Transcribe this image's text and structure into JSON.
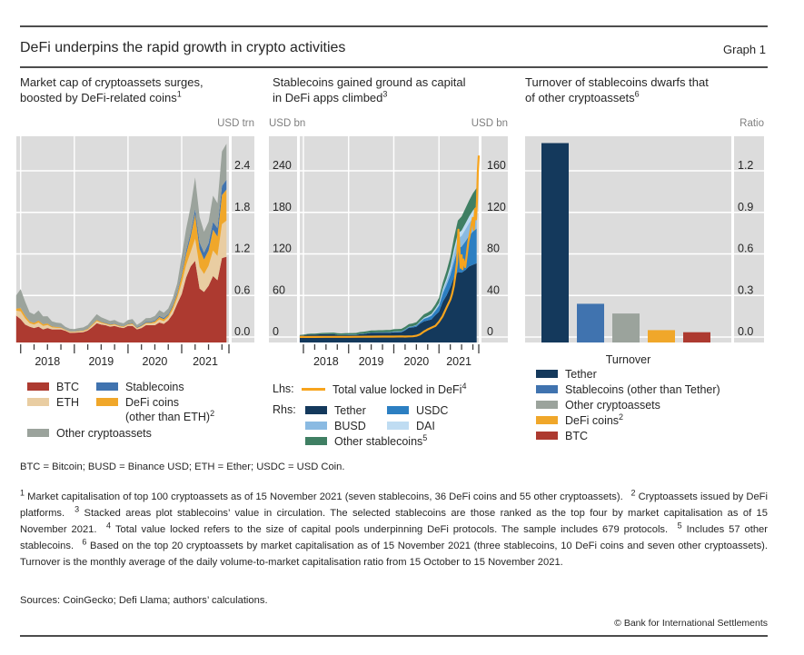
{
  "colors": {
    "plot_bg": "#dcdcdc",
    "grid": "#ffffff",
    "text": "#262626",
    "muted_unit": "#7f7f7f",
    "tick": "#404040",
    "rule": "#4d4d4d",
    "btc_red": "#ad3a30",
    "eth_tan": "#e9cda2",
    "defi_orange": "#f0a72a",
    "stablecoin_blue": "#4073af",
    "other_gray": "#9ba39c",
    "tether_navy": "#14395c",
    "usdc_blue": "#2c7fc2",
    "busd_lightblue": "#8abae2",
    "dai_paleblue": "#bfdcf2",
    "other_stable_green": "#3f7f63",
    "tvl_line_orange": "#f7a41d"
  },
  "header": {
    "title": "DeFi underpins the rapid growth in crypto activities",
    "graph_label": "Graph 1"
  },
  "panels": [
    {
      "title_line1": "Market cap of cryptoassets surges,",
      "title_line2": "boosted by DeFi-related coins",
      "title_sup": "1",
      "unit_right": "USD trn"
    },
    {
      "title_line1": "Stablecoins gained ground as capital",
      "title_line2": "in DeFi apps climbed",
      "title_sup": "3",
      "unit_left": "USD bn",
      "unit_right": "USD bn"
    },
    {
      "title_line1": "Turnover of stablecoins dwarfs that",
      "title_line2": "of other cryptoassets",
      "title_sup": "6",
      "unit_right": "Ratio"
    }
  ],
  "chart_data": [
    {
      "type": "area",
      "title": "Market cap of cryptoassets surges, boosted by DeFi-related coins",
      "stacked": true,
      "unit": "USD trn",
      "x_monthly": {
        "start": "2017-12",
        "end": "2021-11"
      },
      "xticklabels": [
        "2018",
        "2019",
        "2020",
        "2021"
      ],
      "yticks": [
        0.0,
        0.6,
        1.2,
        1.8,
        2.4
      ],
      "yticklabels": [
        "0.0",
        "0.6",
        "1.2",
        "1.8",
        "2.4"
      ],
      "ylim": [
        0,
        2.9
      ],
      "axis_side": "right",
      "grid": true,
      "series": [
        {
          "name": "BTC",
          "color": "#ad3a30",
          "values": [
            0.31,
            0.26,
            0.18,
            0.15,
            0.13,
            0.15,
            0.11,
            0.13,
            0.11,
            0.11,
            0.11,
            0.09,
            0.06,
            0.062,
            0.066,
            0.071,
            0.093,
            0.14,
            0.2,
            0.18,
            0.17,
            0.15,
            0.16,
            0.14,
            0.13,
            0.16,
            0.16,
            0.11,
            0.13,
            0.17,
            0.17,
            0.17,
            0.21,
            0.19,
            0.24,
            0.33,
            0.48,
            0.62,
            0.86,
            1.02,
            1.1,
            0.7,
            0.65,
            0.74,
            0.88,
            0.82,
            1.14,
            1.16
          ]
        },
        {
          "name": "ETH",
          "color": "#e9cda2",
          "values": [
            0.07,
            0.11,
            0.09,
            0.05,
            0.05,
            0.06,
            0.05,
            0.045,
            0.029,
            0.023,
            0.021,
            0.012,
            0.014,
            0.011,
            0.014,
            0.015,
            0.017,
            0.027,
            0.031,
            0.023,
            0.019,
            0.019,
            0.019,
            0.016,
            0.014,
            0.018,
            0.024,
            0.015,
            0.023,
            0.026,
            0.025,
            0.035,
            0.044,
            0.04,
            0.043,
            0.068,
            0.083,
            0.16,
            0.18,
            0.21,
            0.32,
            0.31,
            0.26,
            0.29,
            0.37,
            0.35,
            0.49,
            0.52
          ]
        },
        {
          "name": "DeFi coins (other than ETH)",
          "color": "#f0a72a",
          "values": [
            0.03,
            0.05,
            0.04,
            0.025,
            0.025,
            0.03,
            0.025,
            0.022,
            0.015,
            0.012,
            0.011,
            0.007,
            0.007,
            0.007,
            0.009,
            0.01,
            0.012,
            0.016,
            0.018,
            0.015,
            0.012,
            0.011,
            0.011,
            0.009,
            0.009,
            0.011,
            0.013,
            0.008,
            0.011,
            0.013,
            0.014,
            0.022,
            0.035,
            0.03,
            0.032,
            0.045,
            0.06,
            0.11,
            0.16,
            0.22,
            0.35,
            0.26,
            0.21,
            0.22,
            0.3,
            0.28,
            0.42,
            0.45
          ]
        },
        {
          "name": "Stablecoins",
          "color": "#4073af",
          "values": [
            0.002,
            0.002,
            0.002,
            0.002,
            0.003,
            0.003,
            0.003,
            0.003,
            0.003,
            0.003,
            0.003,
            0.003,
            0.003,
            0.003,
            0.003,
            0.003,
            0.004,
            0.004,
            0.005,
            0.005,
            0.005,
            0.005,
            0.005,
            0.005,
            0.005,
            0.006,
            0.006,
            0.008,
            0.009,
            0.01,
            0.011,
            0.012,
            0.014,
            0.016,
            0.017,
            0.019,
            0.022,
            0.035,
            0.045,
            0.055,
            0.075,
            0.095,
            0.1,
            0.105,
            0.11,
            0.12,
            0.13,
            0.14
          ]
        },
        {
          "name": "Other cryptoassets",
          "color": "#9ba39c",
          "values": [
            0.19,
            0.27,
            0.2,
            0.13,
            0.12,
            0.14,
            0.11,
            0.1,
            0.07,
            0.06,
            0.055,
            0.035,
            0.035,
            0.033,
            0.038,
            0.04,
            0.048,
            0.065,
            0.075,
            0.062,
            0.052,
            0.048,
            0.05,
            0.042,
            0.04,
            0.05,
            0.055,
            0.035,
            0.045,
            0.052,
            0.055,
            0.065,
            0.085,
            0.075,
            0.08,
            0.1,
            0.13,
            0.24,
            0.32,
            0.38,
            0.46,
            0.37,
            0.3,
            0.31,
            0.38,
            0.36,
            0.5,
            0.52
          ]
        }
      ]
    },
    {
      "type": "area+line",
      "title": "Stablecoins gained ground as capital in DeFi apps climbed",
      "stacked": true,
      "unit_left": "USD bn",
      "unit_right": "USD bn",
      "x_monthly": {
        "start": "2017-12",
        "end": "2021-11"
      },
      "xticklabels": [
        "2018",
        "2019",
        "2020",
        "2021"
      ],
      "yticks_left": [
        0,
        60,
        120,
        180,
        240
      ],
      "yticklabels_left": [
        "0",
        "60",
        "120",
        "180",
        "240"
      ],
      "yticks_right": [
        0,
        40,
        80,
        120,
        160
      ],
      "yticklabels_right": [
        "0",
        "40",
        "80",
        "120",
        "160"
      ],
      "ylim_left": [
        0,
        290
      ],
      "ylim_right": [
        0,
        193
      ],
      "grid": true,
      "series_axis": "right",
      "series": [
        {
          "name": "Tether",
          "color": "#14395c",
          "values": [
            1.4,
            1.6,
            2.2,
            2.3,
            2.3,
            2.5,
            2.7,
            2.7,
            2.8,
            2.8,
            2.0,
            1.8,
            1.9,
            2.0,
            2.0,
            2.0,
            2.8,
            3.0,
            3.5,
            4.0,
            4.0,
            4.1,
            4.1,
            4.2,
            4.1,
            4.6,
            4.6,
            4.6,
            6.4,
            8.8,
            9.2,
            10.0,
            13.0,
            15.0,
            15.9,
            17.0,
            21.0,
            24.4,
            34.0,
            40.0,
            48.0,
            58.0,
            62.5,
            62.0,
            64.5,
            68.0,
            69.5,
            71.0
          ]
        },
        {
          "name": "USDC",
          "color": "#2c7fc2",
          "values": [
            0,
            0,
            0,
            0,
            0,
            0,
            0,
            0,
            0,
            0,
            0.13,
            0.17,
            0.25,
            0.24,
            0.24,
            0.24,
            0.29,
            0.32,
            0.34,
            0.37,
            0.41,
            0.44,
            0.46,
            0.49,
            0.52,
            0.56,
            0.6,
            0.68,
            0.73,
            0.73,
            0.93,
            1.1,
            1.4,
            2.5,
            2.8,
            3.5,
            4.0,
            5.5,
            8.0,
            10.0,
            11.5,
            14.5,
            22.8,
            25.0,
            27.5,
            29.5,
            32.0,
            33.5
          ]
        },
        {
          "name": "BUSD",
          "color": "#8abae2",
          "values": [
            0,
            0,
            0,
            0,
            0,
            0,
            0,
            0,
            0,
            0,
            0,
            0,
            0,
            0,
            0,
            0,
            0,
            0,
            0,
            0,
            0.01,
            0.02,
            0.03,
            0.05,
            0.08,
            0.11,
            0.15,
            0.17,
            0.19,
            0.15,
            0.18,
            0.23,
            0.37,
            0.48,
            0.65,
            0.7,
            1.0,
            1.5,
            2.6,
            3.5,
            5.0,
            8.0,
            9.5,
            10.4,
            11.5,
            12.2,
            13.0,
            13.3
          ]
        },
        {
          "name": "DAI",
          "color": "#bfdcf2",
          "values": [
            0,
            0,
            0,
            0,
            0,
            0,
            0,
            0,
            0,
            0,
            0,
            0,
            0,
            0,
            0,
            0,
            0,
            0,
            0,
            0,
            0,
            0,
            0,
            0,
            0.01,
            0.04,
            0.08,
            0.06,
            0.08,
            0.11,
            0.13,
            0.19,
            0.41,
            0.68,
            0.88,
            1.0,
            1.1,
            1.3,
            1.8,
            2.5,
            3.5,
            4.5,
            4.8,
            5.2,
            5.8,
            6.3,
            7.2,
            8.2
          ]
        },
        {
          "name": "Other stablecoins",
          "color": "#3f7f63",
          "values": [
            0.6,
            0.7,
            0.8,
            0.9,
            1.0,
            1.1,
            1.2,
            1.3,
            1.4,
            1.5,
            1.6,
            1.5,
            1.5,
            1.6,
            1.6,
            1.7,
            1.7,
            1.8,
            1.8,
            1.9,
            1.9,
            2.0,
            2.0,
            2.0,
            2.1,
            2.2,
            2.3,
            2.4,
            2.5,
            2.6,
            2.7,
            2.8,
            3.0,
            3.2,
            3.4,
            3.7,
            4.0,
            5.0,
            6.0,
            7.5,
            9.0,
            11.0,
            12.5,
            13.5,
            14.5,
            15.5,
            16.5,
            17.5
          ]
        }
      ],
      "line": {
        "name": "Total value locked in DeFi",
        "axis": "left",
        "color": "#f7a41d",
        "points": [
          [
            2017.92,
            0.1
          ],
          [
            2018.25,
            0.15
          ],
          [
            2018.5,
            0.2
          ],
          [
            2018.75,
            0.25
          ],
          [
            2019.0,
            0.3
          ],
          [
            2019.25,
            0.4
          ],
          [
            2019.5,
            0.5
          ],
          [
            2019.75,
            0.6
          ],
          [
            2020.0,
            0.7
          ],
          [
            2020.17,
            0.9
          ],
          [
            2020.25,
            0.7
          ],
          [
            2020.33,
            0.9
          ],
          [
            2020.42,
            1.0
          ],
          [
            2020.5,
            1.9
          ],
          [
            2020.58,
            3.8
          ],
          [
            2020.67,
            8.0
          ],
          [
            2020.71,
            9.5
          ],
          [
            2020.75,
            11.0
          ],
          [
            2020.83,
            13.5
          ],
          [
            2020.92,
            16.0
          ],
          [
            2021.0,
            22.0
          ],
          [
            2021.08,
            30.0
          ],
          [
            2021.17,
            43.0
          ],
          [
            2021.25,
            54.0
          ],
          [
            2021.29,
            62.0
          ],
          [
            2021.33,
            74.0
          ],
          [
            2021.37,
            92.0
          ],
          [
            2021.4,
            108.0
          ],
          [
            2021.43,
            155.0
          ],
          [
            2021.46,
            118.0
          ],
          [
            2021.48,
            100.0
          ],
          [
            2021.5,
            118.0
          ],
          [
            2021.52,
            98.0
          ],
          [
            2021.54,
            112.0
          ],
          [
            2021.58,
            101.0
          ],
          [
            2021.62,
            122.0
          ],
          [
            2021.65,
            138.0
          ],
          [
            2021.69,
            150.0
          ],
          [
            2021.72,
            162.0
          ],
          [
            2021.75,
            172.0
          ],
          [
            2021.77,
            155.0
          ],
          [
            2021.8,
            185.0
          ],
          [
            2021.82,
            170.0
          ],
          [
            2021.84,
            196.0
          ],
          [
            2021.86,
            240.0
          ],
          [
            2021.88,
            262.0
          ]
        ]
      }
    },
    {
      "type": "bar",
      "title": "Turnover of stablecoins dwarfs that of other cryptoassets",
      "unit": "Ratio",
      "xlabel": "Turnover",
      "categories": [
        "Tether",
        "Stablecoins (other than Tether)",
        "Other cryptoassets",
        "DeFi coins",
        "BTC"
      ],
      "values": [
        1.4,
        0.24,
        0.17,
        0.05,
        0.035
      ],
      "bar_colors": [
        "#14395c",
        "#4073af",
        "#9ba39c",
        "#f0a72a",
        "#ad3a30"
      ],
      "yticks": [
        0.0,
        0.3,
        0.6,
        0.9,
        1.2
      ],
      "yticklabels": [
        "0.0",
        "0.3",
        "0.6",
        "0.9",
        "1.2"
      ],
      "ylim": [
        0,
        1.45
      ],
      "axis_side": "right",
      "grid": true
    }
  ],
  "legend1": {
    "col1": [
      {
        "label": "BTC",
        "color": "#ad3a30"
      },
      {
        "label": "ETH",
        "color": "#e9cda2"
      },
      {
        "label": "Other cryptoassets",
        "color": "#9ba39c"
      }
    ],
    "col2": [
      {
        "label": "Stablecoins",
        "color": "#4073af"
      },
      {
        "label": "DeFi coins",
        "label2": "(other than ETH)",
        "sup2": "2",
        "color": "#f0a72a"
      }
    ]
  },
  "legend2": {
    "lhs_label": "Lhs:",
    "lhs_item": {
      "label": "Total value locked in DeFi",
      "sup": "4",
      "color": "#f7a41d"
    },
    "rhs_label": "Rhs:",
    "col1": [
      {
        "label": "Tether",
        "color": "#14395c"
      },
      {
        "label": "BUSD",
        "color": "#8abae2"
      },
      {
        "label": "Other stablecoins",
        "sup": "5",
        "color": "#3f7f63"
      }
    ],
    "col2": [
      {
        "label": "USDC",
        "color": "#2c7fc2"
      },
      {
        "label": "DAI",
        "color": "#bfdcf2"
      }
    ]
  },
  "legend3": {
    "items": [
      {
        "label": "Tether",
        "color": "#14395c"
      },
      {
        "label": "Stablecoins (other than Tether)",
        "color": "#4073af"
      },
      {
        "label": "Other cryptoassets",
        "color": "#9ba39c"
      },
      {
        "label": "DeFi coins",
        "sup": "2",
        "color": "#f0a72a"
      },
      {
        "label": "BTC",
        "color": "#ad3a30"
      }
    ]
  },
  "footnotes": {
    "abbreviations": "BTC = Bitcoin; BUSD = Binance USD; ETH = Ether; USDC = USD Coin.",
    "notes": [
      {
        "sup": "1",
        "text": "Market capitalisation of top 100 cryptoassets as of 15 November 2021 (seven stablecoins, 36 DeFi coins and 55 other cryptoassets)."
      },
      {
        "sup": "2",
        "text": "Cryptoassets issued by DeFi platforms."
      },
      {
        "sup": "3",
        "text": "Stacked areas plot stablecoins’ value in circulation. The selected stablecoins are those ranked as the top four by market capitalisation as of 15 November 2021."
      },
      {
        "sup": "4",
        "text": "Total value locked refers to the size of capital pools underpinning DeFi protocols. The sample includes 679 protocols."
      },
      {
        "sup": "5",
        "text": "Includes 57 other stablecoins."
      },
      {
        "sup": "6",
        "text": "Based on the top 20 cryptoassets by market capitalisation as of 15 November 2021 (three stablecoins, 10 DeFi coins and seven other cryptoassets). Turnover is the monthly average of the daily volume-to-market capitalisation ratio from 15 October to 15 November 2021."
      }
    ]
  },
  "sources": "Sources: CoinGecko; Defi Llama; authors’ calculations.",
  "copyright": "© Bank for International Settlements"
}
